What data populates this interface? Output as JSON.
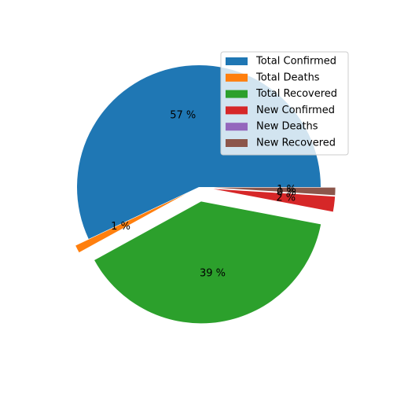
{
  "chart_data": {
    "type": "pie",
    "title": "",
    "legend_position": "top-right",
    "start_angle_deg": 0,
    "direction": "counterclockwise",
    "slices": [
      {
        "label": "Total Confirmed",
        "percent": 57,
        "pct_label": "57 %",
        "color": "#1f77b4",
        "exploded": false
      },
      {
        "label": "Total Deaths",
        "percent": 1,
        "pct_label": "1 %",
        "color": "#ff7f0e",
        "exploded": true
      },
      {
        "label": "Total Recovered",
        "percent": 39,
        "pct_label": "39 %",
        "color": "#2ca02c",
        "exploded": true
      },
      {
        "label": "New Confirmed",
        "percent": 2,
        "pct_label": "2 %",
        "color": "#d62728",
        "exploded": true
      },
      {
        "label": "New Deaths",
        "percent": 0,
        "pct_label": "0 %",
        "color": "#9467bd",
        "exploded": true
      },
      {
        "label": "New Recovered",
        "percent": 1,
        "pct_label": "1 %",
        "color": "#8c564b",
        "exploded": true
      }
    ]
  }
}
